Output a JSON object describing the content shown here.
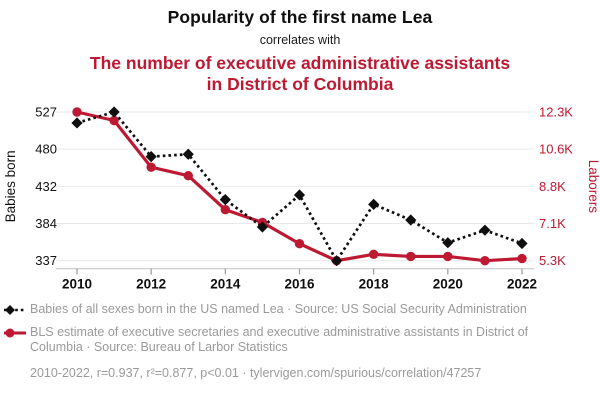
{
  "header": {
    "title": "Popularity of the first name Lea",
    "connector": "correlates with",
    "subtitle": "The number of executive administrative assistants in District of Columbia"
  },
  "chart_data": {
    "type": "line",
    "x": [
      2010,
      2011,
      2012,
      2013,
      2014,
      2015,
      2016,
      2017,
      2018,
      2019,
      2020,
      2021,
      2022
    ],
    "x_tick_labels": [
      2010,
      2012,
      2014,
      2016,
      2018,
      2020,
      2022
    ],
    "series": [
      {
        "name": "Babies of all sexes born in the US named Lea",
        "axis": "left",
        "style": "dashed",
        "marker": "diamond",
        "color": "#0f0f0f",
        "values": [
          513,
          527,
          470,
          473,
          415,
          380,
          421,
          337,
          409,
          389,
          360,
          376,
          359
        ]
      },
      {
        "name": "BLS estimate of executive secretaries and executive administrative assistants in District of Columbia",
        "axis": "right",
        "style": "solid",
        "marker": "circle",
        "color": "#be1932",
        "values": [
          12.3,
          11.9,
          9.7,
          9.3,
          7.7,
          7.1,
          6.1,
          5.3,
          5.6,
          5.5,
          5.5,
          5.3,
          5.4
        ]
      }
    ],
    "left_axis": {
      "label": "Babies born",
      "ticks": [
        337,
        384,
        432,
        480,
        527
      ],
      "range": [
        337,
        527
      ]
    },
    "right_axis": {
      "label": "Laborers",
      "ticks": [
        "5.3K",
        "7.1K",
        "8.8K",
        "10.6K",
        "12.3K"
      ],
      "range": [
        5.3,
        12.3
      ]
    },
    "grid": true,
    "legend_position": "bottom"
  },
  "legend": {
    "items": [
      {
        "label": "Babies of all sexes born in the US named Lea · Source: US Social Security Administration",
        "marker": "diamond",
        "style": "dashed",
        "color": "#0f0f0f"
      },
      {
        "label": "BLS estimate of executive secretaries and executive administrative assistants in District of Columbia · Source: Bureau of Larbor Statistics",
        "marker": "circle",
        "style": "solid",
        "color": "#be1932"
      }
    ]
  },
  "footer": {
    "text": "2010-2022, r=0.937, r²=0.877, p<0.01 · tylervigen.com/spurious/correlation/47257"
  },
  "colors": {
    "accent_red": "#be1932",
    "series_black": "#0f0f0f",
    "text_gray": "#9a9a9a",
    "gridline": "#e9e9e9",
    "axis_line": "#c8c8c8",
    "tick_mark": "#999999"
  }
}
